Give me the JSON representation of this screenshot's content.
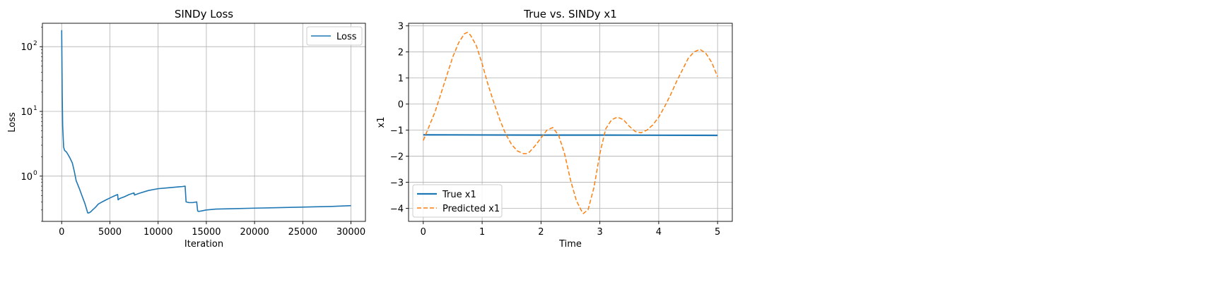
{
  "chart_data": [
    {
      "type": "line",
      "title": "SINDy Loss",
      "xlabel": "Iteration",
      "ylabel": "Loss",
      "yscale": "log",
      "xlim": [
        -2000,
        31500
      ],
      "ylim": [
        0.2,
        230
      ],
      "xticks": [
        0,
        5000,
        10000,
        15000,
        20000,
        25000,
        30000
      ],
      "xtick_labels": [
        "0",
        "5000",
        "10000",
        "15000",
        "20000",
        "25000",
        "30000"
      ],
      "yticks": [
        1,
        10,
        100
      ],
      "ytick_labels": [
        "10",
        "10",
        "10"
      ],
      "ytick_exponents": [
        "0",
        "1",
        "2"
      ],
      "grid": true,
      "legend_position": "upper right",
      "series": [
        {
          "name": "Loss",
          "color": "#1f77b4",
          "x": [
            0,
            50,
            100,
            200,
            300,
            500,
            700,
            900,
            1100,
            1300,
            1500,
            1800,
            2100,
            2400,
            2700,
            2800,
            3000,
            3200,
            3500,
            3800,
            4200,
            4600,
            5000,
            5400,
            5800,
            5850,
            6000,
            6500,
            7000,
            7500,
            7550,
            8000,
            9000,
            10000,
            11000,
            12000,
            12500,
            12800,
            12900,
            13200,
            13600,
            14000,
            14100,
            14200,
            14500,
            15000,
            16000,
            18000,
            20000,
            22000,
            24000,
            26000,
            28000,
            30000
          ],
          "y": [
            180,
            20,
            6,
            2.8,
            2.5,
            2.35,
            2.1,
            1.85,
            1.6,
            1.2,
            0.85,
            0.66,
            0.5,
            0.38,
            0.27,
            0.27,
            0.28,
            0.3,
            0.33,
            0.37,
            0.4,
            0.43,
            0.46,
            0.49,
            0.52,
            0.43,
            0.45,
            0.48,
            0.52,
            0.55,
            0.51,
            0.54,
            0.6,
            0.64,
            0.66,
            0.68,
            0.69,
            0.7,
            0.4,
            0.39,
            0.39,
            0.4,
            0.29,
            0.285,
            0.29,
            0.3,
            0.31,
            0.315,
            0.32,
            0.325,
            0.33,
            0.335,
            0.34,
            0.35
          ]
        }
      ]
    },
    {
      "type": "line",
      "title": "True vs. SINDy x1",
      "xlabel": "Time",
      "ylabel": "x1",
      "xlim": [
        -0.25,
        5.25
      ],
      "ylim": [
        -4.5,
        3.1
      ],
      "xticks": [
        0,
        1,
        2,
        3,
        4,
        5
      ],
      "xtick_labels": [
        "0",
        "1",
        "2",
        "3",
        "4",
        "5"
      ],
      "yticks": [
        -4,
        -3,
        -2,
        -1,
        0,
        1,
        2,
        3
      ],
      "ytick_labels": [
        "−4",
        "−3",
        "−2",
        "−1",
        "0",
        "1",
        "2",
        "3"
      ],
      "grid": true,
      "legend_position": "lower left",
      "series": [
        {
          "name": "True x1",
          "color": "#1f77b4",
          "style": "solid",
          "x": [
            0,
            1,
            2,
            3,
            4,
            5
          ],
          "y": [
            -1.18,
            -1.185,
            -1.19,
            -1.19,
            -1.195,
            -1.2
          ]
        },
        {
          "name": "Predicted x1",
          "color": "#ff7f0e",
          "style": "dashed",
          "x": [
            0,
            0.1,
            0.2,
            0.3,
            0.4,
            0.5,
            0.6,
            0.7,
            0.75,
            0.8,
            0.9,
            1.0,
            1.1,
            1.2,
            1.3,
            1.4,
            1.5,
            1.6,
            1.7,
            1.75,
            1.8,
            1.9,
            2.0,
            2.1,
            2.2,
            2.3,
            2.4,
            2.5,
            2.6,
            2.7,
            2.72,
            2.8,
            2.9,
            3.0,
            3.1,
            3.2,
            3.3,
            3.4,
            3.5,
            3.6,
            3.7,
            3.8,
            3.9,
            4.0,
            4.1,
            4.2,
            4.3,
            4.4,
            4.5,
            4.6,
            4.7,
            4.8,
            4.9,
            5.0
          ],
          "y": [
            -1.4,
            -0.85,
            -0.3,
            0.4,
            1.1,
            1.8,
            2.35,
            2.7,
            2.75,
            2.65,
            2.25,
            1.55,
            0.75,
            0.05,
            -0.6,
            -1.15,
            -1.55,
            -1.8,
            -1.9,
            -1.9,
            -1.85,
            -1.6,
            -1.3,
            -1.0,
            -0.9,
            -1.2,
            -1.9,
            -2.9,
            -3.7,
            -4.15,
            -4.2,
            -4.05,
            -3.2,
            -1.9,
            -0.95,
            -0.6,
            -0.5,
            -0.6,
            -0.85,
            -1.05,
            -1.1,
            -1.0,
            -0.8,
            -0.5,
            -0.1,
            0.35,
            0.85,
            1.3,
            1.75,
            2.0,
            2.1,
            1.95,
            1.6,
            1.05
          ]
        }
      ]
    }
  ]
}
